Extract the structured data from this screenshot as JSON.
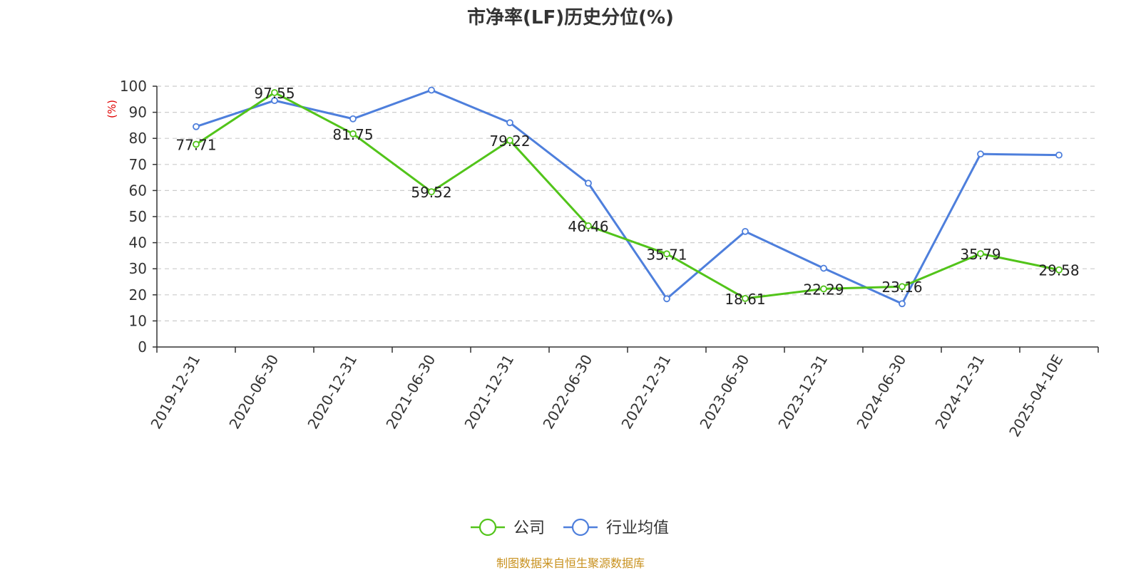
{
  "chart_data": {
    "type": "line",
    "title": "市净率(LF)历史分位(%)",
    "ylabel": "(%)",
    "ylim": [
      0,
      100
    ],
    "yticks": [
      0,
      10,
      20,
      30,
      40,
      50,
      60,
      70,
      80,
      90,
      100
    ],
    "categories": [
      "2019-12-31",
      "2020-06-30",
      "2020-12-31",
      "2021-06-30",
      "2021-12-31",
      "2022-06-30",
      "2022-12-31",
      "2023-06-30",
      "2023-12-31",
      "2024-06-30",
      "2024-12-31",
      "2025-04-10E"
    ],
    "series": [
      {
        "name": "公司",
        "color": "#52c41a",
        "show_labels": true,
        "values": [
          77.71,
          97.55,
          81.75,
          59.52,
          79.22,
          46.46,
          35.71,
          18.61,
          22.29,
          23.16,
          35.79,
          29.58
        ],
        "labels": [
          "77.71",
          "97.55",
          "81.75",
          "59.52",
          "79.22",
          "46.46",
          "35.71",
          "18.61",
          "22.29",
          "23.16",
          "35.79",
          "29.58"
        ]
      },
      {
        "name": "行业均值",
        "color": "#4e7fdc",
        "show_labels": false,
        "values": [
          84.5,
          94.5,
          87.5,
          98.5,
          86.0,
          62.8,
          18.5,
          44.3,
          30.2,
          16.6,
          74.0,
          73.6
        ]
      }
    ],
    "grid": "horizontal-dashed",
    "legend_position": "bottom-center"
  },
  "colors": {
    "unit_label": "#e00000",
    "source": "#c8911e",
    "axis": "#333333",
    "grid": "#cccccc"
  },
  "source_text": "制图数据来自恒生聚源数据库"
}
